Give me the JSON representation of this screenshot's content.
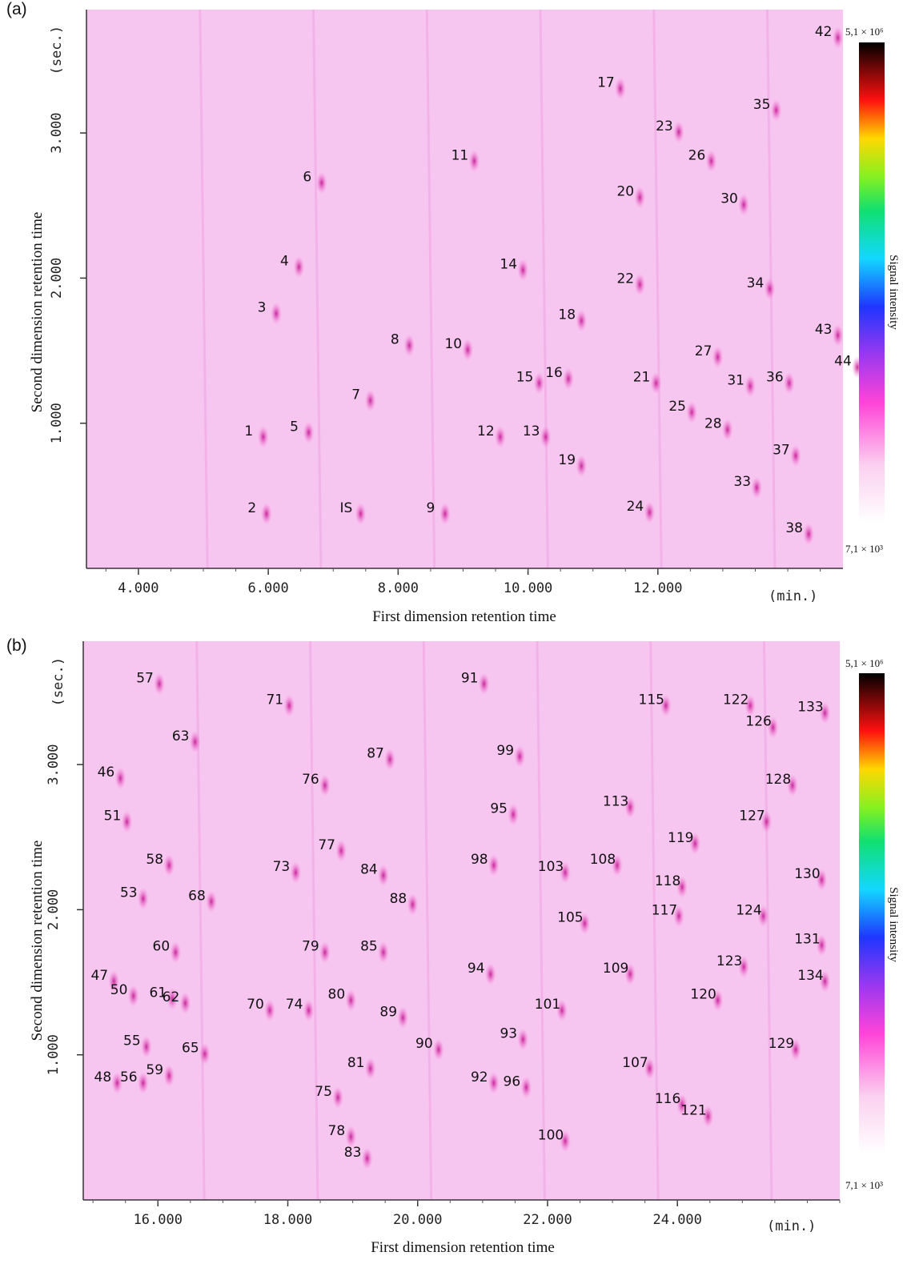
{
  "chart_data": [
    {
      "type": "heatmap",
      "panel_label": "(a)",
      "xlabel": "First dimension retention time",
      "ylabel": "Second dimension retention time",
      "x_unit": "(min.)",
      "y_unit": "(sec.)",
      "x_ticks": [
        "4.000",
        "6.000",
        "8.000",
        "10.000",
        "12.000"
      ],
      "y_ticks": [
        "1.000",
        "2.000",
        "3.000"
      ],
      "xlim": [
        3.2,
        14.85
      ],
      "ylim": [
        0.0,
        3.85
      ],
      "colorbar": {
        "title": "Signal intensity",
        "max_label": "5,1 × 10⁶",
        "min_label": "7,1 × 10³"
      },
      "peaks": [
        {
          "label": "1",
          "x": 5.7,
          "y": 0.95
        },
        {
          "label": "2",
          "x": 5.75,
          "y": 0.42
        },
        {
          "label": "3",
          "x": 5.9,
          "y": 1.8
        },
        {
          "label": "4",
          "x": 6.25,
          "y": 2.12
        },
        {
          "label": "5",
          "x": 6.4,
          "y": 0.98
        },
        {
          "label": "6",
          "x": 6.6,
          "y": 2.7
        },
        {
          "label": "IS",
          "x": 7.2,
          "y": 0.42
        },
        {
          "label": "7",
          "x": 7.35,
          "y": 1.2
        },
        {
          "label": "8",
          "x": 7.95,
          "y": 1.58
        },
        {
          "label": "9",
          "x": 8.5,
          "y": 0.42
        },
        {
          "label": "10",
          "x": 8.85,
          "y": 1.55
        },
        {
          "label": "11",
          "x": 8.95,
          "y": 2.85
        },
        {
          "label": "12",
          "x": 9.35,
          "y": 0.95
        },
        {
          "label": "13",
          "x": 10.05,
          "y": 0.95
        },
        {
          "label": "14",
          "x": 9.7,
          "y": 2.1
        },
        {
          "label": "15",
          "x": 9.95,
          "y": 1.32
        },
        {
          "label": "16",
          "x": 10.4,
          "y": 1.35
        },
        {
          "label": "17",
          "x": 11.2,
          "y": 3.35
        },
        {
          "label": "18",
          "x": 10.6,
          "y": 1.75
        },
        {
          "label": "19",
          "x": 10.6,
          "y": 0.75
        },
        {
          "label": "20",
          "x": 11.5,
          "y": 2.6
        },
        {
          "label": "21",
          "x": 11.75,
          "y": 1.32
        },
        {
          "label": "22",
          "x": 11.5,
          "y": 2.0
        },
        {
          "label": "23",
          "x": 12.1,
          "y": 3.05
        },
        {
          "label": "24",
          "x": 11.65,
          "y": 0.43
        },
        {
          "label": "25",
          "x": 12.3,
          "y": 1.12
        },
        {
          "label": "26",
          "x": 12.6,
          "y": 2.85
        },
        {
          "label": "27",
          "x": 12.7,
          "y": 1.5
        },
        {
          "label": "28",
          "x": 12.85,
          "y": 1.0
        },
        {
          "label": "30",
          "x": 13.1,
          "y": 2.55
        },
        {
          "label": "31",
          "x": 13.2,
          "y": 1.3
        },
        {
          "label": "33",
          "x": 13.3,
          "y": 0.6
        },
        {
          "label": "34",
          "x": 13.5,
          "y": 1.97
        },
        {
          "label": "35",
          "x": 13.6,
          "y": 3.2
        },
        {
          "label": "36",
          "x": 13.8,
          "y": 1.32
        },
        {
          "label": "37",
          "x": 13.9,
          "y": 0.82
        },
        {
          "label": "38",
          "x": 14.1,
          "y": 0.28
        },
        {
          "label": "42",
          "x": 14.55,
          "y": 3.7
        },
        {
          "label": "43",
          "x": 14.55,
          "y": 1.65
        },
        {
          "label": "44",
          "x": 14.85,
          "y": 1.43
        }
      ]
    },
    {
      "type": "heatmap",
      "panel_label": "(b)",
      "xlabel": "First dimension retention time",
      "ylabel": "Second dimension retention time",
      "x_unit": "(min.)",
      "y_unit": "(sec.)",
      "x_ticks": [
        "16.000",
        "18.000",
        "20.000",
        "22.000",
        "24.000"
      ],
      "y_ticks": [
        "1.000",
        "2.000",
        "3.000"
      ],
      "xlim": [
        14.85,
        26.5
      ],
      "ylim": [
        0.0,
        3.85
      ],
      "colorbar": {
        "title": "Signal intensity",
        "max_label": "5,1 × 10⁶",
        "min_label": "7,1 × 10³"
      },
      "peaks": [
        {
          "label": "46",
          "x": 15.2,
          "y": 2.95
        },
        {
          "label": "47",
          "x": 15.1,
          "y": 1.55
        },
        {
          "label": "48",
          "x": 15.15,
          "y": 0.85
        },
        {
          "label": "50",
          "x": 15.4,
          "y": 1.45
        },
        {
          "label": "51",
          "x": 15.3,
          "y": 2.65
        },
        {
          "label": "53",
          "x": 15.55,
          "y": 2.12
        },
        {
          "label": "55",
          "x": 15.6,
          "y": 1.1
        },
        {
          "label": "56",
          "x": 15.55,
          "y": 0.85
        },
        {
          "label": "57",
          "x": 15.8,
          "y": 3.6
        },
        {
          "label": "58",
          "x": 15.95,
          "y": 2.35
        },
        {
          "label": "59",
          "x": 15.95,
          "y": 0.9
        },
        {
          "label": "60",
          "x": 16.05,
          "y": 1.75
        },
        {
          "label": "61",
          "x": 16.0,
          "y": 1.43
        },
        {
          "label": "62",
          "x": 16.2,
          "y": 1.4
        },
        {
          "label": "63",
          "x": 16.35,
          "y": 3.2
        },
        {
          "label": "65",
          "x": 16.5,
          "y": 1.05
        },
        {
          "label": "68",
          "x": 16.6,
          "y": 2.1
        },
        {
          "label": "70",
          "x": 17.5,
          "y": 1.35
        },
        {
          "label": "71",
          "x": 17.8,
          "y": 3.45
        },
        {
          "label": "73",
          "x": 17.9,
          "y": 2.3
        },
        {
          "label": "74",
          "x": 18.1,
          "y": 1.35
        },
        {
          "label": "75",
          "x": 18.55,
          "y": 0.75
        },
        {
          "label": "76",
          "x": 18.35,
          "y": 2.9
        },
        {
          "label": "77",
          "x": 18.6,
          "y": 2.45
        },
        {
          "label": "78",
          "x": 18.75,
          "y": 0.48
        },
        {
          "label": "79",
          "x": 18.35,
          "y": 1.75
        },
        {
          "label": "80",
          "x": 18.75,
          "y": 1.42
        },
        {
          "label": "81",
          "x": 19.05,
          "y": 0.95
        },
        {
          "label": "83",
          "x": 19.0,
          "y": 0.33
        },
        {
          "label": "84",
          "x": 19.25,
          "y": 2.28
        },
        {
          "label": "85",
          "x": 19.25,
          "y": 1.75
        },
        {
          "label": "87",
          "x": 19.35,
          "y": 3.08
        },
        {
          "label": "88",
          "x": 19.7,
          "y": 2.08
        },
        {
          "label": "89",
          "x": 19.55,
          "y": 1.3
        },
        {
          "label": "90",
          "x": 20.1,
          "y": 1.08
        },
        {
          "label": "91",
          "x": 20.8,
          "y": 3.6
        },
        {
          "label": "92",
          "x": 20.95,
          "y": 0.85
        },
        {
          "label": "93",
          "x": 21.4,
          "y": 1.15
        },
        {
          "label": "94",
          "x": 20.9,
          "y": 1.6
        },
        {
          "label": "95",
          "x": 21.25,
          "y": 2.7
        },
        {
          "label": "96",
          "x": 21.45,
          "y": 0.82
        },
        {
          "label": "98",
          "x": 20.95,
          "y": 2.35
        },
        {
          "label": "99",
          "x": 21.35,
          "y": 3.1
        },
        {
          "label": "100",
          "x": 22.05,
          "y": 0.45
        },
        {
          "label": "101",
          "x": 22.0,
          "y": 1.35
        },
        {
          "label": "103",
          "x": 22.05,
          "y": 2.3
        },
        {
          "label": "105",
          "x": 22.35,
          "y": 1.95
        },
        {
          "label": "107",
          "x": 23.35,
          "y": 0.95
        },
        {
          "label": "108",
          "x": 22.85,
          "y": 2.35
        },
        {
          "label": "109",
          "x": 23.05,
          "y": 1.6
        },
        {
          "label": "113",
          "x": 23.05,
          "y": 2.75
        },
        {
          "label": "115",
          "x": 23.6,
          "y": 3.45
        },
        {
          "label": "116",
          "x": 23.85,
          "y": 0.7
        },
        {
          "label": "117",
          "x": 23.8,
          "y": 2.0
        },
        {
          "label": "118",
          "x": 23.85,
          "y": 2.2
        },
        {
          "label": "119",
          "x": 24.05,
          "y": 2.5
        },
        {
          "label": "120",
          "x": 24.4,
          "y": 1.42
        },
        {
          "label": "121",
          "x": 24.25,
          "y": 0.62
        },
        {
          "label": "122",
          "x": 24.9,
          "y": 3.45
        },
        {
          "label": "123",
          "x": 24.8,
          "y": 1.65
        },
        {
          "label": "124",
          "x": 25.1,
          "y": 2.0
        },
        {
          "label": "126",
          "x": 25.25,
          "y": 3.3
        },
        {
          "label": "127",
          "x": 25.15,
          "y": 2.65
        },
        {
          "label": "128",
          "x": 25.55,
          "y": 2.9
        },
        {
          "label": "129",
          "x": 25.6,
          "y": 1.08
        },
        {
          "label": "130",
          "x": 26.0,
          "y": 2.25
        },
        {
          "label": "131",
          "x": 26.0,
          "y": 1.8
        },
        {
          "label": "133",
          "x": 26.05,
          "y": 3.4
        },
        {
          "label": "134",
          "x": 26.05,
          "y": 1.55
        }
      ]
    }
  ]
}
